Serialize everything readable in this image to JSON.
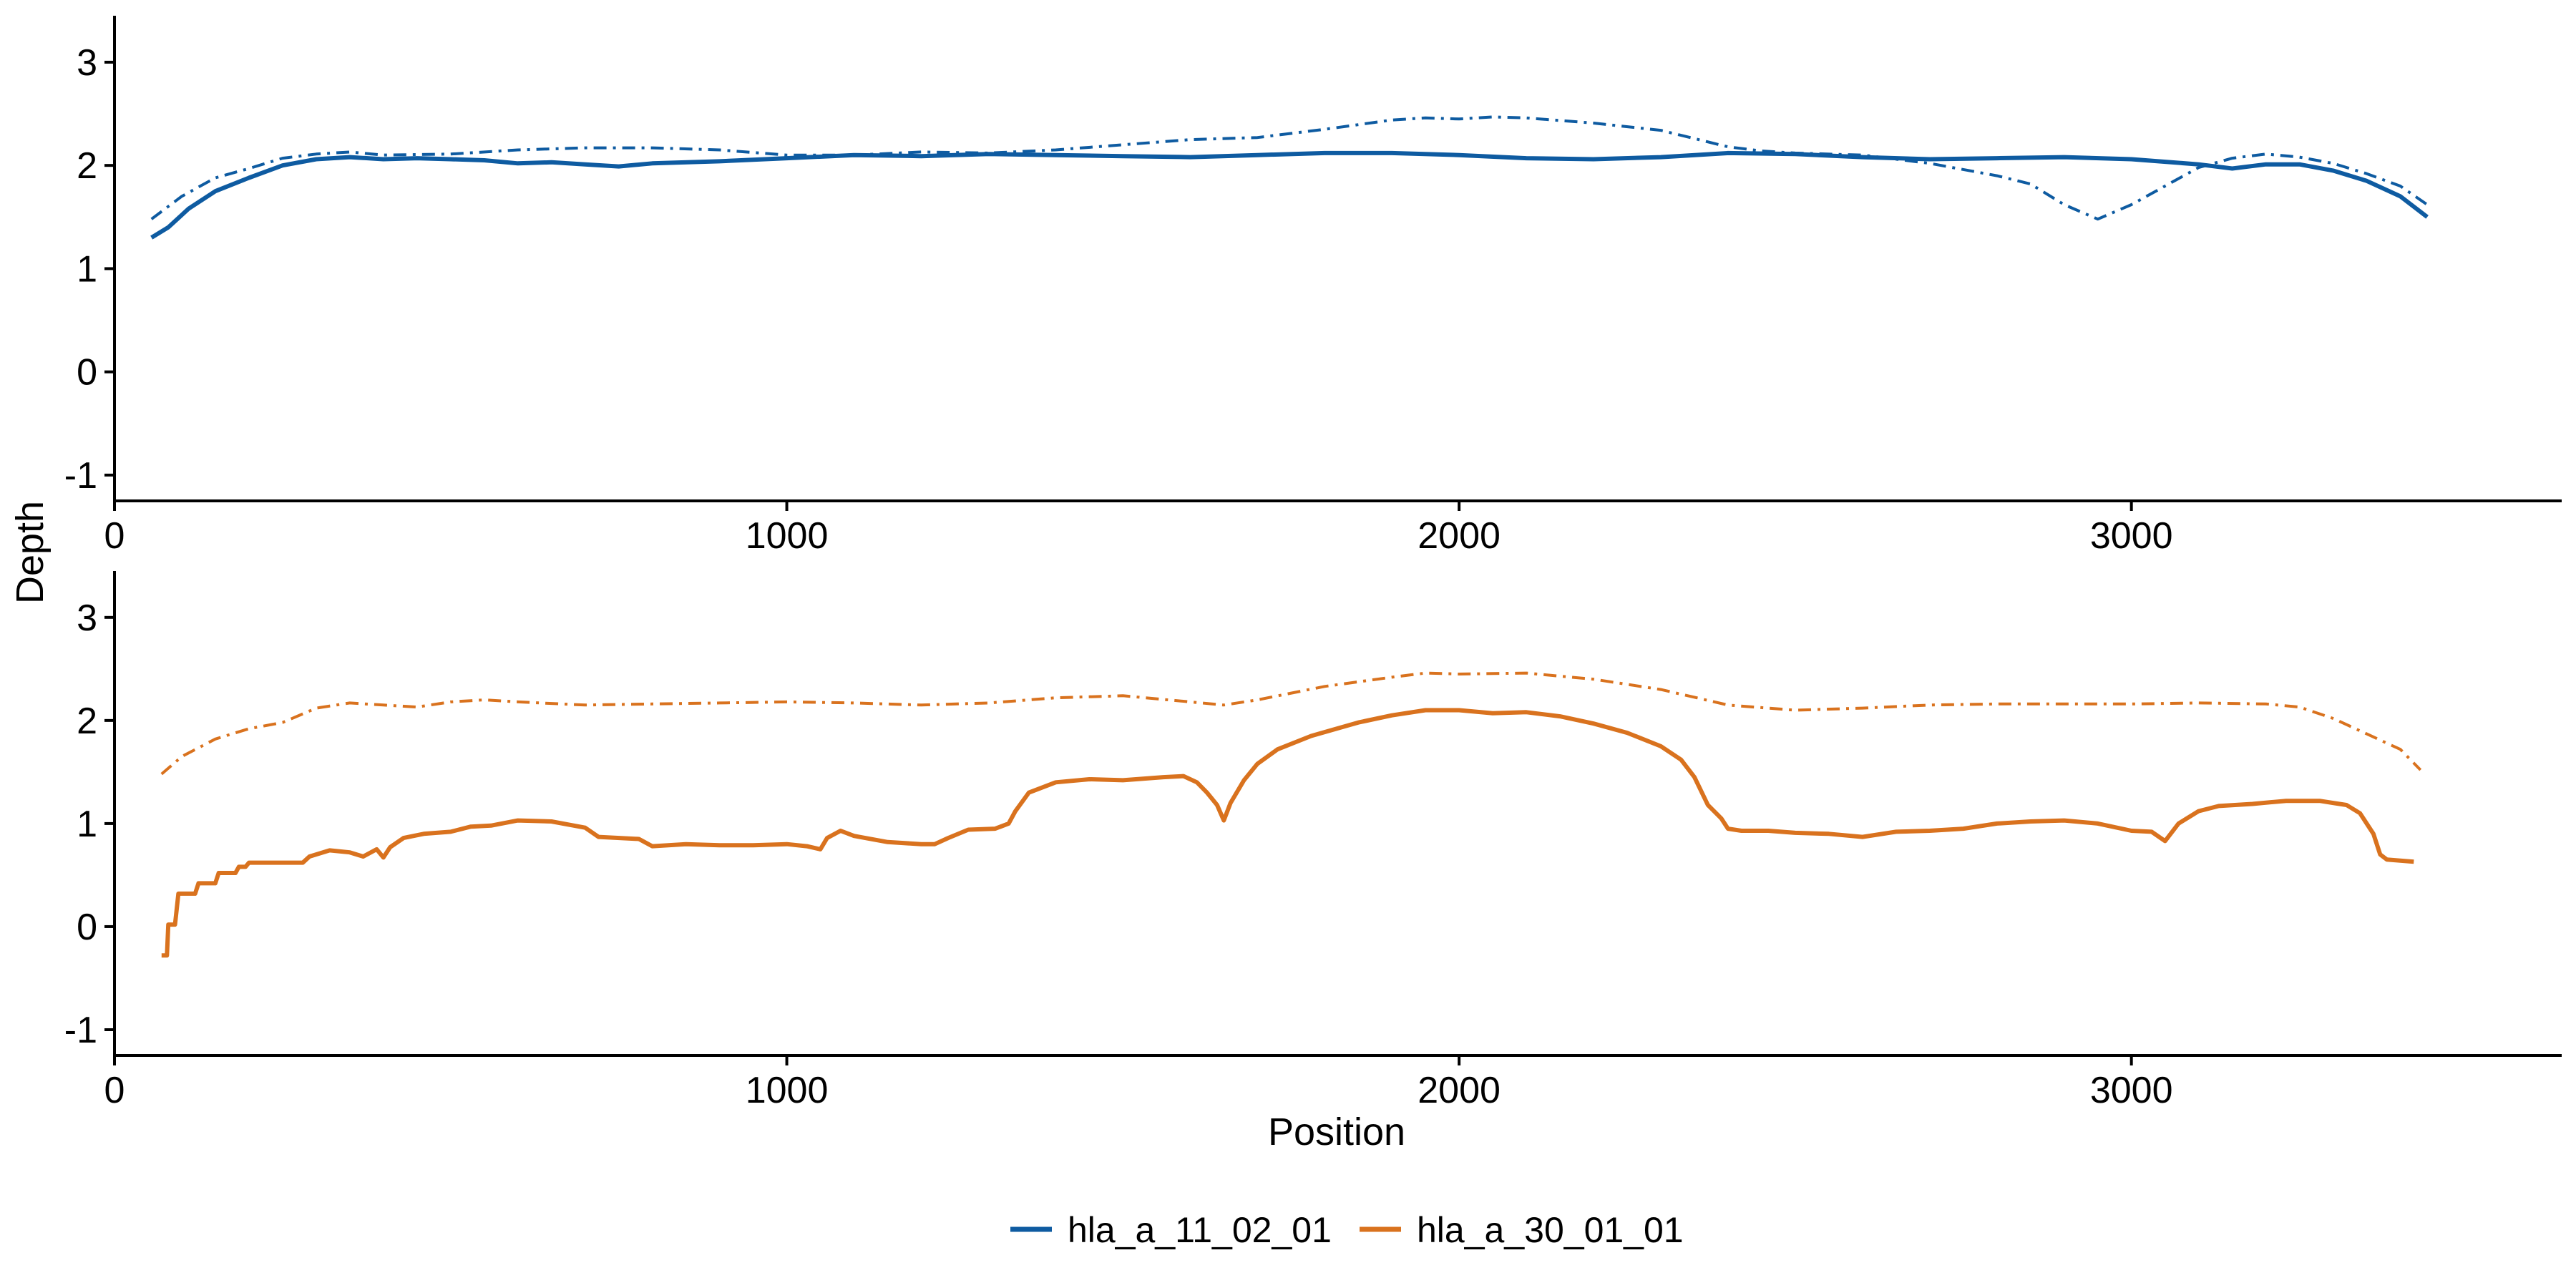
{
  "chart_data": {
    "type": "line",
    "ylabel": "Depth",
    "xlabel": "Position",
    "x_ticks": [
      0,
      1000,
      2000,
      3000
    ],
    "y_ticks": [
      -1,
      0,
      1,
      2,
      3
    ],
    "xlim": [
      0,
      3640
    ],
    "ylim": [
      -1.25,
      3.45
    ],
    "legend": {
      "position": "bottom",
      "entries": [
        {
          "name": "hla_a_11_02_01",
          "color": "#0e5ba1"
        },
        {
          "name": "hla_a_30_01_01",
          "color": "#d9721e"
        }
      ]
    },
    "panels": [
      {
        "name": "hla_a_11_02_01",
        "color": "#0e5ba1",
        "series": [
          {
            "style": "solid",
            "points": [
              [
                55,
                1.3
              ],
              [
                80,
                1.4
              ],
              [
                110,
                1.58
              ],
              [
                150,
                1.75
              ],
              [
                200,
                1.88
              ],
              [
                250,
                2.0
              ],
              [
                300,
                2.06
              ],
              [
                350,
                2.08
              ],
              [
                400,
                2.06
              ],
              [
                450,
                2.07
              ],
              [
                500,
                2.06
              ],
              [
                550,
                2.05
              ],
              [
                600,
                2.02
              ],
              [
                650,
                2.03
              ],
              [
                700,
                2.01
              ],
              [
                750,
                1.99
              ],
              [
                800,
                2.02
              ],
              [
                900,
                2.04
              ],
              [
                1000,
                2.07
              ],
              [
                1100,
                2.1
              ],
              [
                1200,
                2.09
              ],
              [
                1300,
                2.11
              ],
              [
                1400,
                2.1
              ],
              [
                1500,
                2.09
              ],
              [
                1600,
                2.08
              ],
              [
                1700,
                2.1
              ],
              [
                1800,
                2.12
              ],
              [
                1900,
                2.12
              ],
              [
                2000,
                2.1
              ],
              [
                2100,
                2.07
              ],
              [
                2200,
                2.06
              ],
              [
                2300,
                2.08
              ],
              [
                2400,
                2.12
              ],
              [
                2500,
                2.11
              ],
              [
                2600,
                2.08
              ],
              [
                2700,
                2.06
              ],
              [
                2800,
                2.07
              ],
              [
                2900,
                2.08
              ],
              [
                3000,
                2.06
              ],
              [
                3100,
                2.01
              ],
              [
                3150,
                1.97
              ],
              [
                3200,
                2.01
              ],
              [
                3250,
                2.01
              ],
              [
                3300,
                1.95
              ],
              [
                3350,
                1.85
              ],
              [
                3400,
                1.7
              ],
              [
                3440,
                1.5
              ]
            ]
          },
          {
            "style": "dashdot",
            "points": [
              [
                55,
                1.48
              ],
              [
                100,
                1.7
              ],
              [
                150,
                1.88
              ],
              [
                200,
                1.97
              ],
              [
                250,
                2.07
              ],
              [
                300,
                2.11
              ],
              [
                350,
                2.13
              ],
              [
                400,
                2.1
              ],
              [
                500,
                2.11
              ],
              [
                600,
                2.15
              ],
              [
                700,
                2.17
              ],
              [
                800,
                2.17
              ],
              [
                900,
                2.15
              ],
              [
                1000,
                2.1
              ],
              [
                1100,
                2.1
              ],
              [
                1200,
                2.13
              ],
              [
                1300,
                2.12
              ],
              [
                1400,
                2.15
              ],
              [
                1500,
                2.2
              ],
              [
                1600,
                2.25
              ],
              [
                1700,
                2.27
              ],
              [
                1800,
                2.35
              ],
              [
                1900,
                2.44
              ],
              [
                1950,
                2.46
              ],
              [
                2000,
                2.45
              ],
              [
                2050,
                2.47
              ],
              [
                2100,
                2.46
              ],
              [
                2200,
                2.41
              ],
              [
                2300,
                2.34
              ],
              [
                2400,
                2.18
              ],
              [
                2450,
                2.14
              ],
              [
                2500,
                2.12
              ],
              [
                2600,
                2.1
              ],
              [
                2700,
                2.02
              ],
              [
                2800,
                1.9
              ],
              [
                2850,
                1.82
              ],
              [
                2900,
                1.62
              ],
              [
                2950,
                1.48
              ],
              [
                3000,
                1.62
              ],
              [
                3050,
                1.8
              ],
              [
                3100,
                1.98
              ],
              [
                3150,
                2.07
              ],
              [
                3200,
                2.11
              ],
              [
                3250,
                2.08
              ],
              [
                3300,
                2.02
              ],
              [
                3350,
                1.92
              ],
              [
                3400,
                1.8
              ],
              [
                3440,
                1.62
              ]
            ]
          }
        ]
      },
      {
        "name": "hla_a_30_01_01",
        "color": "#d9721e",
        "series": [
          {
            "style": "solid",
            "points": [
              [
                70,
                -0.28
              ],
              [
                78,
                -0.28
              ],
              [
                80,
                0.02
              ],
              [
                90,
                0.02
              ],
              [
                95,
                0.32
              ],
              [
                120,
                0.32
              ],
              [
                125,
                0.42
              ],
              [
                150,
                0.42
              ],
              [
                155,
                0.52
              ],
              [
                180,
                0.52
              ],
              [
                185,
                0.58
              ],
              [
                195,
                0.58
              ],
              [
                200,
                0.62
              ],
              [
                280,
                0.62
              ],
              [
                290,
                0.68
              ],
              [
                320,
                0.74
              ],
              [
                350,
                0.72
              ],
              [
                370,
                0.68
              ],
              [
                390,
                0.75
              ],
              [
                400,
                0.67
              ],
              [
                410,
                0.77
              ],
              [
                430,
                0.86
              ],
              [
                460,
                0.9
              ],
              [
                500,
                0.92
              ],
              [
                530,
                0.97
              ],
              [
                560,
                0.98
              ],
              [
                600,
                1.03
              ],
              [
                650,
                1.02
              ],
              [
                700,
                0.96
              ],
              [
                720,
                0.87
              ],
              [
                780,
                0.85
              ],
              [
                800,
                0.78
              ],
              [
                850,
                0.8
              ],
              [
                900,
                0.79
              ],
              [
                950,
                0.79
              ],
              [
                1000,
                0.8
              ],
              [
                1030,
                0.78
              ],
              [
                1050,
                0.75
              ],
              [
                1060,
                0.86
              ],
              [
                1080,
                0.93
              ],
              [
                1100,
                0.88
              ],
              [
                1150,
                0.82
              ],
              [
                1200,
                0.8
              ],
              [
                1220,
                0.8
              ],
              [
                1240,
                0.86
              ],
              [
                1270,
                0.94
              ],
              [
                1310,
                0.95
              ],
              [
                1330,
                1.0
              ],
              [
                1340,
                1.12
              ],
              [
                1360,
                1.3
              ],
              [
                1400,
                1.4
              ],
              [
                1450,
                1.43
              ],
              [
                1500,
                1.42
              ],
              [
                1560,
                1.45
              ],
              [
                1590,
                1.46
              ],
              [
                1610,
                1.4
              ],
              [
                1625,
                1.3
              ],
              [
                1640,
                1.18
              ],
              [
                1650,
                1.03
              ],
              [
                1660,
                1.2
              ],
              [
                1680,
                1.42
              ],
              [
                1700,
                1.58
              ],
              [
                1730,
                1.72
              ],
              [
                1780,
                1.85
              ],
              [
                1850,
                1.98
              ],
              [
                1900,
                2.05
              ],
              [
                1950,
                2.1
              ],
              [
                2000,
                2.1
              ],
              [
                2050,
                2.07
              ],
              [
                2100,
                2.08
              ],
              [
                2150,
                2.04
              ],
              [
                2200,
                1.97
              ],
              [
                2250,
                1.88
              ],
              [
                2300,
                1.75
              ],
              [
                2330,
                1.62
              ],
              [
                2350,
                1.45
              ],
              [
                2370,
                1.18
              ],
              [
                2390,
                1.05
              ],
              [
                2400,
                0.95
              ],
              [
                2420,
                0.93
              ],
              [
                2460,
                0.93
              ],
              [
                2500,
                0.91
              ],
              [
                2550,
                0.9
              ],
              [
                2600,
                0.87
              ],
              [
                2650,
                0.92
              ],
              [
                2700,
                0.93
              ],
              [
                2750,
                0.95
              ],
              [
                2800,
                1.0
              ],
              [
                2850,
                1.02
              ],
              [
                2900,
                1.03
              ],
              [
                2950,
                1.0
              ],
              [
                3000,
                0.93
              ],
              [
                3030,
                0.92
              ],
              [
                3050,
                0.83
              ],
              [
                3070,
                1.0
              ],
              [
                3100,
                1.12
              ],
              [
                3130,
                1.17
              ],
              [
                3180,
                1.19
              ],
              [
                3230,
                1.22
              ],
              [
                3280,
                1.22
              ],
              [
                3300,
                1.2
              ],
              [
                3320,
                1.18
              ],
              [
                3340,
                1.1
              ],
              [
                3360,
                0.9
              ],
              [
                3370,
                0.7
              ],
              [
                3380,
                0.65
              ],
              [
                3420,
                0.63
              ]
            ]
          },
          {
            "style": "dashdot",
            "points": [
              [
                70,
                1.48
              ],
              [
                100,
                1.65
              ],
              [
                150,
                1.82
              ],
              [
                200,
                1.92
              ],
              [
                250,
                1.98
              ],
              [
                300,
                2.12
              ],
              [
                350,
                2.17
              ],
              [
                400,
                2.15
              ],
              [
                450,
                2.13
              ],
              [
                500,
                2.18
              ],
              [
                550,
                2.2
              ],
              [
                600,
                2.18
              ],
              [
                700,
                2.15
              ],
              [
                800,
                2.16
              ],
              [
                900,
                2.17
              ],
              [
                1000,
                2.18
              ],
              [
                1100,
                2.17
              ],
              [
                1200,
                2.15
              ],
              [
                1300,
                2.17
              ],
              [
                1400,
                2.22
              ],
              [
                1500,
                2.24
              ],
              [
                1600,
                2.18
              ],
              [
                1650,
                2.15
              ],
              [
                1700,
                2.2
              ],
              [
                1800,
                2.33
              ],
              [
                1900,
                2.42
              ],
              [
                1950,
                2.46
              ],
              [
                2000,
                2.45
              ],
              [
                2100,
                2.46
              ],
              [
                2200,
                2.4
              ],
              [
                2300,
                2.3
              ],
              [
                2400,
                2.15
              ],
              [
                2500,
                2.1
              ],
              [
                2600,
                2.12
              ],
              [
                2700,
                2.15
              ],
              [
                2800,
                2.16
              ],
              [
                2900,
                2.16
              ],
              [
                3000,
                2.16
              ],
              [
                3100,
                2.17
              ],
              [
                3200,
                2.16
              ],
              [
                3250,
                2.13
              ],
              [
                3300,
                2.02
              ],
              [
                3350,
                1.87
              ],
              [
                3400,
                1.72
              ],
              [
                3430,
                1.52
              ]
            ]
          }
        ]
      }
    ]
  }
}
